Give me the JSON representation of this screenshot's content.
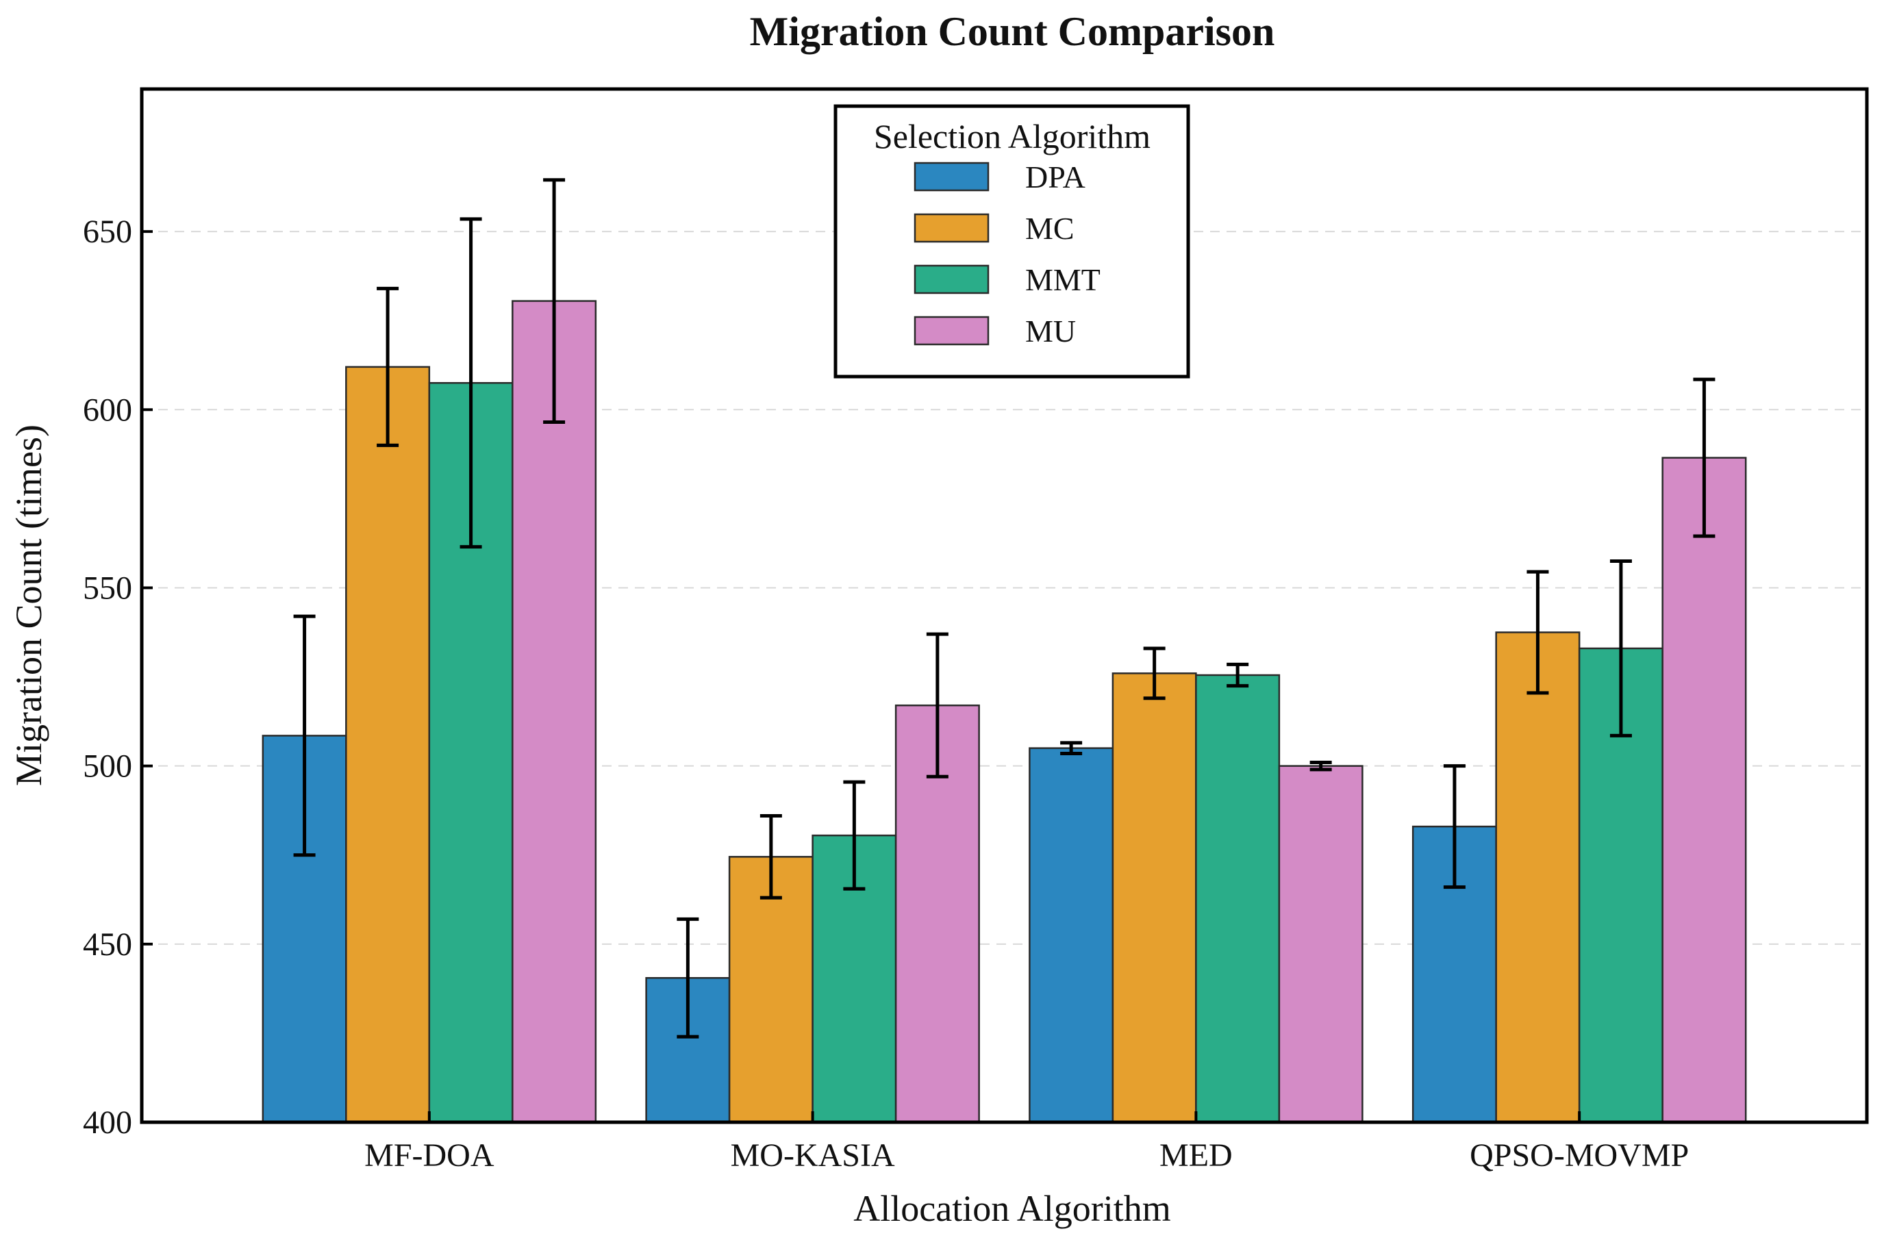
{
  "chart_data": {
    "type": "bar",
    "title": "Migration Count Comparison",
    "xlabel": "Allocation Algorithm",
    "ylabel": "Migration Count (times)",
    "ylim": [
      400,
      690
    ],
    "yticks": [
      400,
      450,
      500,
      550,
      600,
      650
    ],
    "grid": "horizontal dashed",
    "legend_title": "Selection Algorithm",
    "legend_position": "top-center",
    "categories": [
      "MF-DOA",
      "MO-KASIA",
      "MED",
      "QPSO-MOVMP"
    ],
    "series": [
      {
        "name": "DPA",
        "color": "#2b87c0",
        "values": [
          508.5,
          440.5,
          505,
          483
        ],
        "errors": [
          33.5,
          16.5,
          1.5,
          17
        ]
      },
      {
        "name": "MC",
        "color": "#e6a02e",
        "values": [
          612,
          474.5,
          526,
          537.5
        ],
        "errors": [
          22,
          11.5,
          7,
          17
        ]
      },
      {
        "name": "MMT",
        "color": "#2aad89",
        "values": [
          607.5,
          480.5,
          525.5,
          533
        ],
        "errors": [
          46,
          15,
          3,
          24.5
        ]
      },
      {
        "name": "MU",
        "color": "#d48bc6",
        "values": [
          630.5,
          517,
          500,
          586.5
        ],
        "errors": [
          34,
          20,
          1,
          22
        ]
      }
    ]
  }
}
